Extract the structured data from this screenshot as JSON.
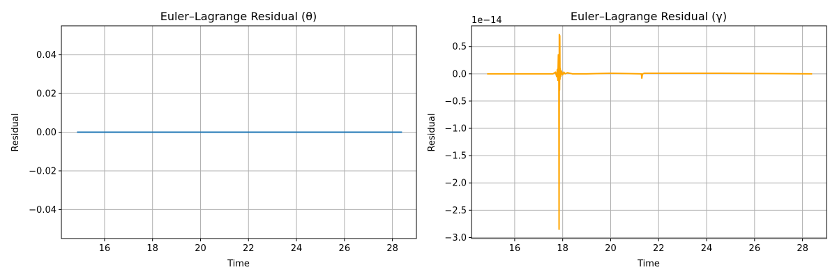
{
  "chart_data": [
    {
      "type": "line",
      "title": "Euler–Lagrange Residual (θ)",
      "xlabel": "Time",
      "ylabel": "Residual",
      "xlim": [
        14.2,
        29.0
      ],
      "ylim": [
        -0.055,
        0.055
      ],
      "xticks": [
        16,
        18,
        20,
        22,
        24,
        26,
        28
      ],
      "yticks": [
        -0.04,
        -0.02,
        0.0,
        0.02,
        0.04
      ],
      "ytick_labels": [
        "−0.04",
        "−0.02",
        "0.00",
        "0.02",
        "0.04"
      ],
      "offset_text": "",
      "grid": true,
      "series": [
        {
          "color": "#1f77b4",
          "x": [
            14.85,
            28.4
          ],
          "y": [
            0,
            0
          ]
        }
      ]
    },
    {
      "type": "line",
      "title": "Euler–Lagrange Residual (γ)",
      "xlabel": "Time",
      "ylabel": "Residual",
      "xlim": [
        14.2,
        29.0
      ],
      "ylim": [
        -3.02,
        0.88
      ],
      "xticks": [
        16,
        18,
        20,
        22,
        24,
        26,
        28
      ],
      "yticks": [
        0.5,
        0.0,
        -0.5,
        -1.0,
        -1.5,
        -2.0,
        -2.5,
        -3.0
      ],
      "ytick_labels": [
        "0.5",
        "0.0",
        "−0.5",
        "−1.0",
        "−1.5",
        "−2.0",
        "−2.5",
        "−3.0"
      ],
      "offset_text": "1e−14",
      "grid": true,
      "series": [
        {
          "color": "#ffa500",
          "x": [
            14.85,
            17.6,
            17.7,
            17.75,
            17.78,
            17.8,
            17.82,
            17.84,
            17.85,
            17.86,
            17.87,
            17.88,
            17.89,
            17.9,
            17.92,
            17.95,
            18.0,
            18.05,
            18.1,
            18.2,
            18.4,
            19.0,
            20.0,
            21.28,
            21.3,
            21.32,
            21.34,
            21.4,
            22.0,
            24.6,
            28.4
          ],
          "y": [
            0.0,
            0.0,
            0.03,
            -0.05,
            0.08,
            -0.12,
            0.35,
            -0.05,
            -2.85,
            0.72,
            -0.3,
            0.7,
            -0.1,
            0.1,
            -0.05,
            0.05,
            -0.02,
            0.03,
            0.0,
            0.02,
            0.0,
            0.0,
            0.01,
            0.0,
            -0.08,
            -0.02,
            0.0,
            0.01,
            0.01,
            0.01,
            0.0
          ]
        }
      ]
    }
  ]
}
